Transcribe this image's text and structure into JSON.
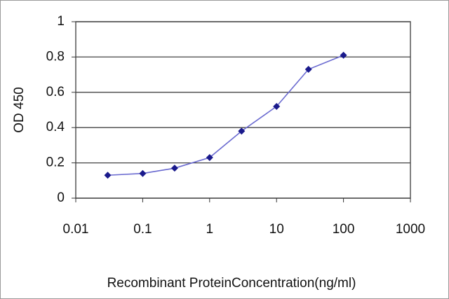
{
  "chart_data": {
    "type": "line",
    "x_label": "Recombinant ProteinConcentration(ng/ml)",
    "y_label": "OD 450",
    "x": [
      0.03,
      0.1,
      0.3,
      1,
      3,
      10,
      30,
      100
    ],
    "series": [
      {
        "values": [
          0.13,
          0.14,
          0.17,
          0.23,
          0.38,
          0.52,
          0.73,
          0.81
        ],
        "color": "#6a6ad0",
        "marker_color": "#1a1a8c"
      }
    ],
    "xscale": "log",
    "xlim": [
      0.01,
      1000
    ],
    "xticks": [
      0.01,
      0.1,
      1,
      10,
      100,
      1000
    ],
    "ylim": [
      0,
      1
    ],
    "yticks": [
      0,
      0.2,
      0.4,
      0.6,
      0.8,
      1
    ],
    "grid": true
  }
}
